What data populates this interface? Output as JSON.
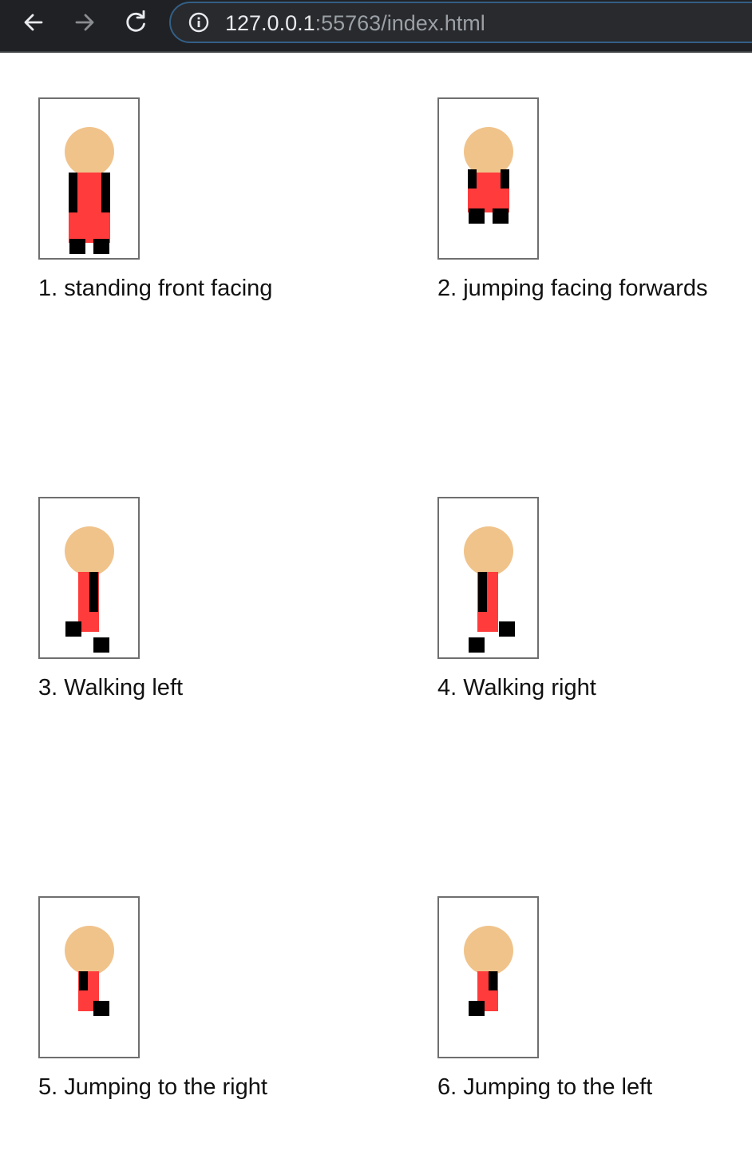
{
  "browser": {
    "back_icon": "arrow-left-icon",
    "forward_icon": "arrow-right-icon",
    "reload_icon": "reload-icon",
    "info_icon": "info-icon",
    "url_host": "127.0.0.1",
    "url_rest": ":55763/index.html"
  },
  "colors": {
    "skin": "#f0c38b",
    "shirt": "#ff3b3b",
    "dark": "#000000"
  },
  "sprites": [
    {
      "caption": "1. standing front facing",
      "pose": "standing-front"
    },
    {
      "caption": "2. jumping facing forwards",
      "pose": "jumping-front"
    },
    {
      "caption": "3. Walking left",
      "pose": "walking-left"
    },
    {
      "caption": "4. Walking right",
      "pose": "walking-right"
    },
    {
      "caption": "5. Jumping to the right",
      "pose": "jumping-right"
    },
    {
      "caption": "6. Jumping to the left",
      "pose": "jumping-left"
    }
  ]
}
